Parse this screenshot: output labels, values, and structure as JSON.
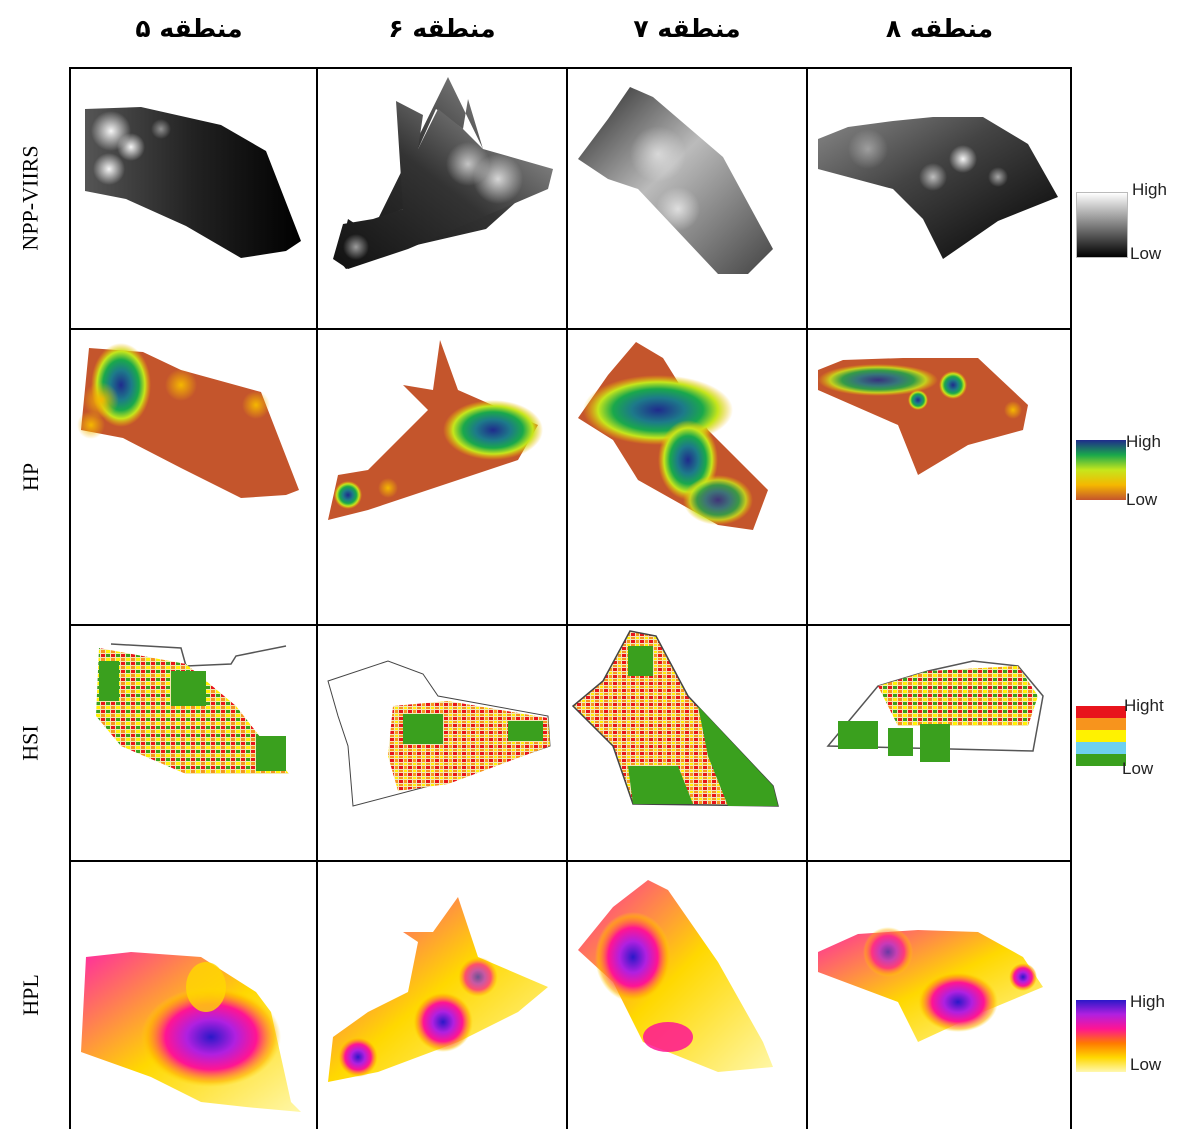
{
  "columns": [
    "منطقه ۵",
    "منطقه ۶",
    "منطقه ۷",
    "منطقه ۸"
  ],
  "rows": [
    "NPP-VIIRS",
    "HP",
    "HSI",
    "HPL"
  ],
  "legends": [
    {
      "high": "High",
      "low": "Low",
      "ramp": "grayscale",
      "colors": [
        "#ffffff",
        "#000000"
      ]
    },
    {
      "high": "High",
      "low": "Low",
      "ramp": "blue-green-yellow-brown",
      "colors": [
        "#1f2b8c",
        "#1aa84b",
        "#c6e61c",
        "#f5b700",
        "#c4552c"
      ]
    },
    {
      "high": "Hight",
      "low": "Low",
      "ramp": "classes",
      "colors": [
        "#e8141c",
        "#f7941d",
        "#fff200",
        "#6dd0f0",
        "#3aa01e"
      ]
    },
    {
      "high": "High",
      "low": "Low",
      "ramp": "blue-magenta-yellow",
      "colors": [
        "#2b18c8",
        "#b020e0",
        "#ff1493",
        "#ffd800",
        "#fff8b0"
      ]
    }
  ],
  "colors": {
    "grid": "#000000",
    "background": "#ffffff"
  }
}
